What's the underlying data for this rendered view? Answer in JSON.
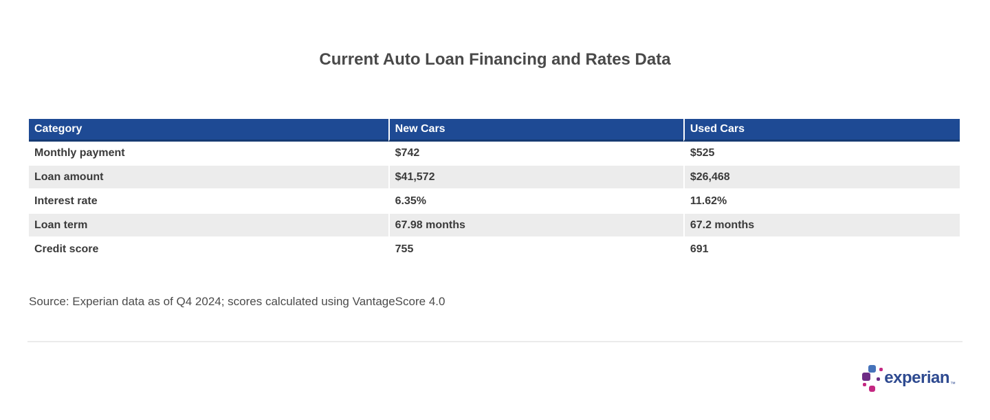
{
  "chart_data": {
    "type": "table",
    "title": "Current Auto Loan Financing and Rates Data",
    "columns": [
      "Category",
      "New Cars",
      "Used Cars"
    ],
    "rows": [
      [
        "Monthly payment",
        "$742",
        "$525"
      ],
      [
        "Loan amount",
        "$41,572",
        "$26,468"
      ],
      [
        "Interest rate",
        "6.35%",
        "11.62%"
      ],
      [
        "Loan term",
        "67.98 months",
        "67.2 months"
      ],
      [
        "Credit score",
        "755",
        "691"
      ]
    ],
    "series": [
      {
        "name": "New Cars",
        "monthly_payment_usd": 742,
        "loan_amount_usd": 41572,
        "interest_rate_pct": 6.35,
        "loan_term_months": 67.98,
        "credit_score": 755
      },
      {
        "name": "Used Cars",
        "monthly_payment_usd": 525,
        "loan_amount_usd": 26468,
        "interest_rate_pct": 11.62,
        "loan_term_months": 67.2,
        "credit_score": 691
      }
    ],
    "source_note": "Source: Experian data as of Q4 2024; scores calculated using VantageScore 4.0"
  },
  "logo": {
    "brand": "experian",
    "trademark": "™"
  },
  "colors": {
    "header_bg": "#1e4a94",
    "header_border_bottom": "#163a72",
    "header_text": "#ffffff",
    "row_alt_bg": "#ececec",
    "body_text": "#3a3a3a",
    "title_text": "#494949",
    "source_text": "#4b4b4b",
    "divider": "#ebebeb",
    "logo_wordmark": "#2e4a90",
    "logo_blue": "#4673ba",
    "logo_purple": "#6d2c85",
    "logo_magenta": "#c42882"
  }
}
